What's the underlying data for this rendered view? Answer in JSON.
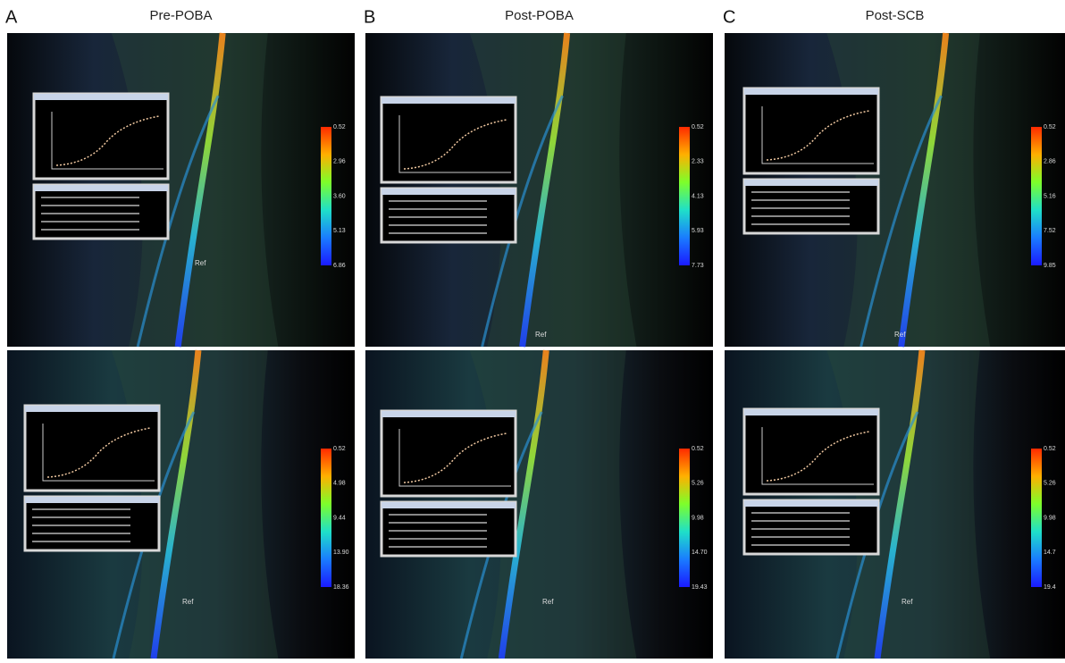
{
  "panels": [
    {
      "letter": "A",
      "title": "Pre-POBA",
      "images": [
        {
          "colorbar": [
            "0.52",
            "2.96",
            "3.60",
            "5.13",
            "6.86"
          ],
          "ref": "Ref"
        },
        {
          "colorbar": [
            "0.52",
            "4.98",
            "9.44",
            "13.90",
            "18.36"
          ],
          "ref": "Ref"
        }
      ]
    },
    {
      "letter": "B",
      "title": "Post-POBA",
      "images": [
        {
          "colorbar": [
            "0.52",
            "2.33",
            "4.13",
            "5.93",
            "7.73"
          ],
          "ref": "Ref"
        },
        {
          "colorbar": [
            "0.52",
            "5.26",
            "9.98",
            "14.70",
            "19.43"
          ],
          "ref": "Ref"
        }
      ]
    },
    {
      "letter": "C",
      "title": "Post-SCB",
      "images": [
        {
          "colorbar": [
            "0.52",
            "2.86",
            "5.16",
            "7.52",
            "9.85"
          ],
          "ref": "Ref"
        },
        {
          "colorbar": [
            "0.52",
            "5.26",
            "9.98",
            "14.7",
            "19.4"
          ],
          "ref": "Ref"
        }
      ]
    }
  ]
}
